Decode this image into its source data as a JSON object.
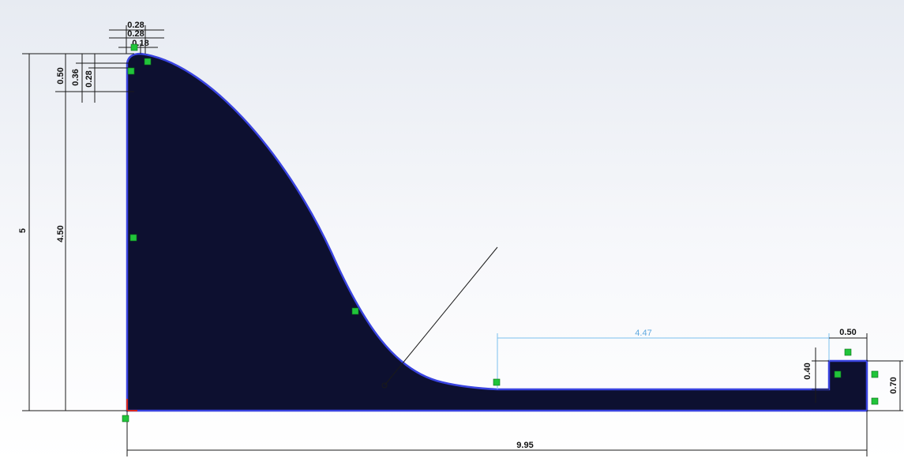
{
  "colors": {
    "profile_fill": "#0d1030",
    "profile_edge": "#3a44e0",
    "dimension": "#1a1a1a",
    "selected_dimension": "#5fa9e0",
    "relation_marker": "#21c43a",
    "origin": "#d9261c"
  },
  "dimensions": {
    "top_width_a": "0.28",
    "top_width_b": "0.28",
    "top_width_c": "0.18",
    "top_height_a": "0.50",
    "top_height_b": "0.36",
    "top_height_c": "0.28",
    "total_height": "5",
    "wall_height": "4.50",
    "flat_length": "4.47",
    "step_width": "0.50",
    "step_height": "0.40",
    "block_height": "0.70",
    "total_length": "9.95"
  }
}
